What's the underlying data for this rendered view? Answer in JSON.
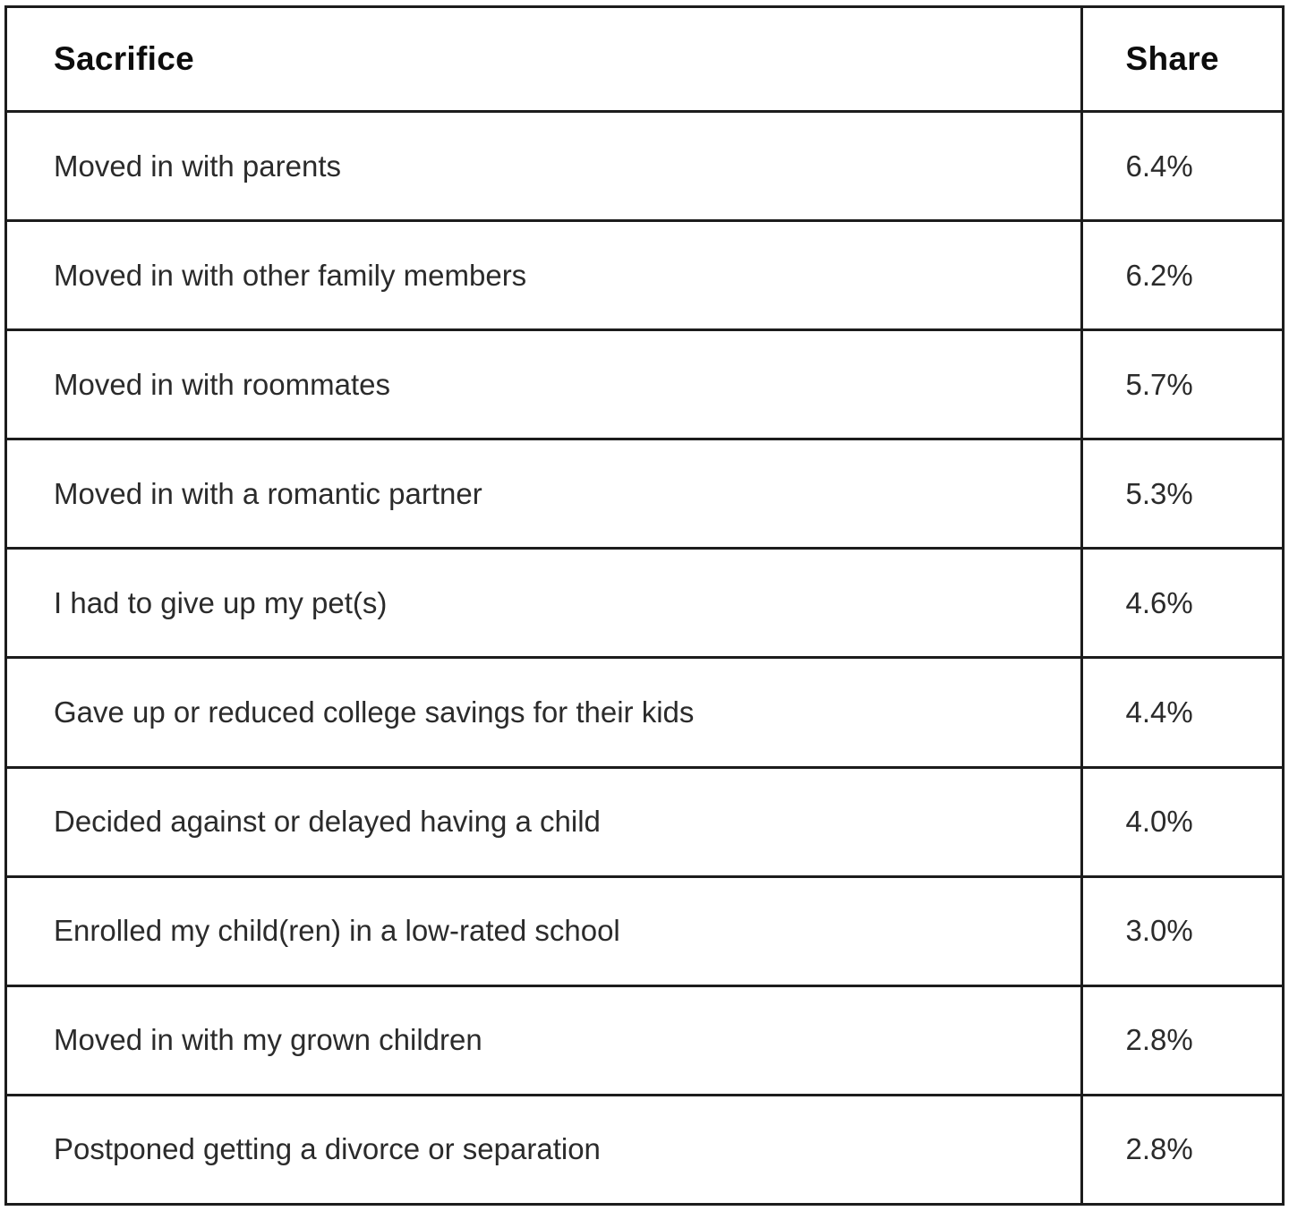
{
  "table": {
    "columns": {
      "sacrifice": "Sacrifice",
      "share": "Share"
    },
    "rows": [
      {
        "sacrifice": "Moved in with parents",
        "share": "6.4%"
      },
      {
        "sacrifice": "Moved in with other family members",
        "share": "6.2%"
      },
      {
        "sacrifice": "Moved in with roommates",
        "share": "5.7%"
      },
      {
        "sacrifice": "Moved in with a romantic partner",
        "share": "5.3%"
      },
      {
        "sacrifice": "I had to give up my pet(s)",
        "share": "4.6%"
      },
      {
        "sacrifice": "Gave up or reduced college savings for their kids",
        "share": "4.4%"
      },
      {
        "sacrifice": "Decided against or delayed having a child",
        "share": "4.0%"
      },
      {
        "sacrifice": "Enrolled my child(ren) in a low-rated school",
        "share": "3.0%"
      },
      {
        "sacrifice": "Moved in with my grown children",
        "share": "2.8%"
      },
      {
        "sacrifice": "Postponed getting a divorce or separation",
        "share": "2.8%"
      }
    ]
  },
  "chart_data": {
    "type": "table",
    "title": "",
    "columns": [
      "Sacrifice",
      "Share"
    ],
    "rows": [
      [
        "Moved in with parents",
        "6.4%"
      ],
      [
        "Moved in with other family members",
        "6.2%"
      ],
      [
        "Moved in with roommates",
        "5.7%"
      ],
      [
        "Moved in with a romantic partner",
        "5.3%"
      ],
      [
        "I had to give up my pet(s)",
        "4.6%"
      ],
      [
        "Gave up or reduced college savings for their kids",
        "4.4%"
      ],
      [
        "Decided against or delayed having a child",
        "4.0%"
      ],
      [
        "Enrolled my child(ren) in a low-rated school",
        "3.0%"
      ],
      [
        "Moved in with my grown children",
        "2.8%"
      ],
      [
        "Postponed getting a divorce or separation",
        "2.8%"
      ]
    ],
    "values_numeric_percent": [
      6.4,
      6.2,
      5.7,
      5.3,
      4.6,
      4.4,
      4.0,
      3.0,
      2.8,
      2.8
    ]
  },
  "colors": {
    "background": "#ffffff",
    "border": "#1c1c1c",
    "header_text": "#0d0d0d",
    "body_text": "#2b2b2b"
  }
}
